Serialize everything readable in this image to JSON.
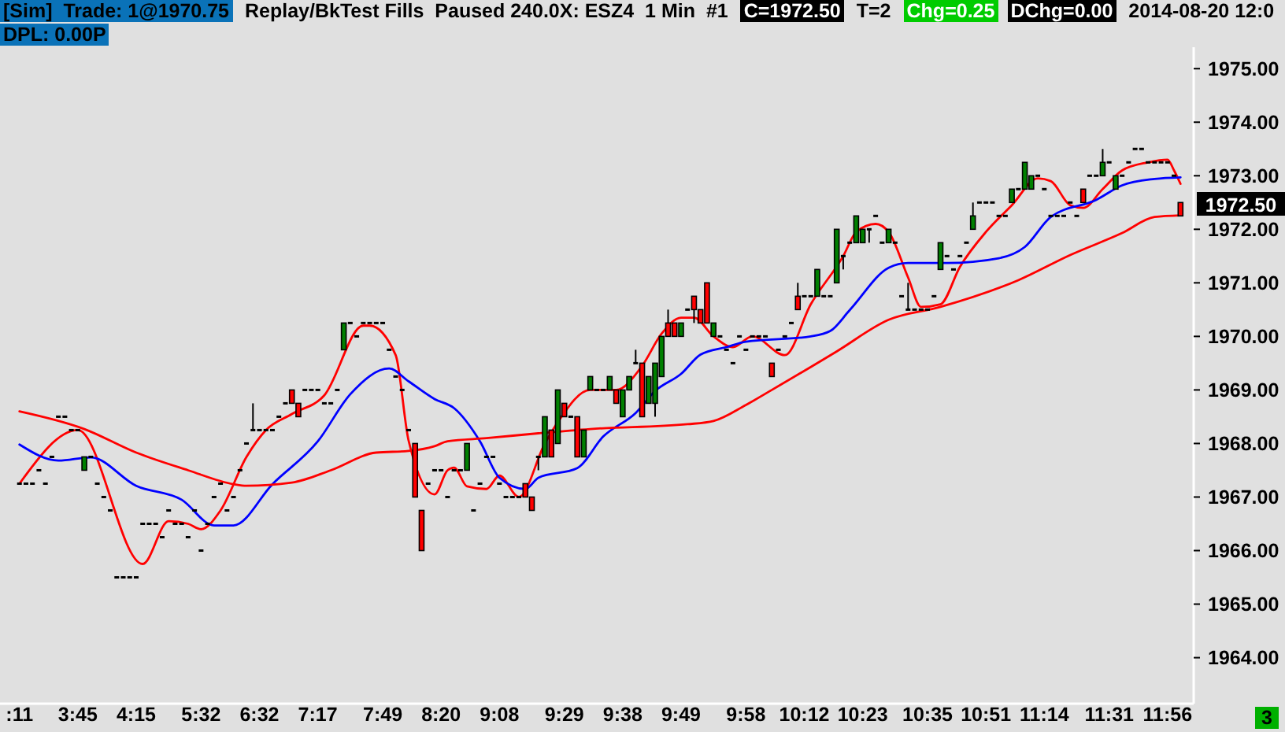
{
  "chart_data": {
    "type": "candlestick",
    "annotations": [
      "[Sim]  Trade: 1@1970.75",
      "Replay/BkTest Fills  Paused 240.0X: ESZ4  1 Min  #1",
      "C=1972.50",
      "T=2",
      "Chg=0.25",
      "DChg=0.00",
      "2014-08-20 12:0",
      "DPL: 0.00P",
      "3",
      "1972.50"
    ],
    "categories": [
      ":11",
      null,
      null,
      null,
      null,
      null,
      null,
      null,
      null,
      "3:45",
      null,
      null,
      null,
      null,
      null,
      null,
      null,
      null,
      "4:15",
      null,
      null,
      null,
      null,
      null,
      null,
      null,
      null,
      null,
      "5:32",
      null,
      null,
      null,
      null,
      null,
      null,
      null,
      null,
      "6:32",
      null,
      null,
      null,
      null,
      null,
      null,
      null,
      null,
      "7:17",
      null,
      null,
      null,
      null,
      null,
      null,
      null,
      null,
      null,
      "7:49",
      null,
      null,
      null,
      null,
      null,
      null,
      null,
      null,
      "8:20",
      null,
      null,
      null,
      null,
      null,
      null,
      null,
      null,
      "9:08",
      null,
      null,
      null,
      null,
      null,
      null,
      null,
      null,
      null,
      "9:29",
      null,
      null,
      null,
      null,
      null,
      null,
      null,
      null,
      "9:38",
      null,
      null,
      null,
      null,
      null,
      null,
      null,
      null,
      "9:49",
      null,
      null,
      null,
      null,
      null,
      null,
      null,
      null,
      null,
      "9:58",
      null,
      null,
      null,
      null,
      null,
      null,
      null,
      null,
      "10:12",
      null,
      null,
      null,
      null,
      null,
      null,
      null,
      null,
      "10:23",
      null,
      null,
      null,
      null,
      null,
      null,
      null,
      null,
      null,
      "10:35",
      null,
      null,
      null,
      null,
      null,
      null,
      null,
      null,
      "10:51",
      null,
      null,
      null,
      null,
      null,
      null,
      null,
      null,
      "11:14",
      null,
      null,
      null,
      null,
      null,
      null,
      null,
      null,
      null,
      "11:31",
      null,
      null,
      null,
      null,
      null,
      null,
      null,
      null,
      "11:56",
      null,
      null
    ],
    "ohlc": [
      [
        1967.25,
        1967.25,
        1967.25,
        1967.25
      ],
      [
        1967.25,
        1967.25,
        1967.25,
        1967.25
      ],
      [
        1967.25,
        1967.25,
        1967.25,
        1967.25
      ],
      [
        1967.5,
        1967.5,
        1967.5,
        1967.5
      ],
      [
        1967.25,
        1967.25,
        1967.25,
        1967.25
      ],
      [
        1967.75,
        1967.75,
        1967.75,
        1967.75
      ],
      [
        1968.5,
        1968.5,
        1968.5,
        1968.5
      ],
      [
        1968.5,
        1968.5,
        1968.5,
        1968.5
      ],
      [
        1968.25,
        1968.25,
        1968.25,
        1968.25
      ],
      [
        1968.25,
        1968.25,
        1968.25,
        1968.25
      ],
      [
        1967.5,
        1967.75,
        1967.5,
        1967.75
      ],
      [
        1967.75,
        1967.75,
        1967.75,
        1967.75
      ],
      [
        1967.25,
        1967.25,
        1967.25,
        1967.25
      ],
      [
        1967,
        1967,
        1967,
        1967
      ],
      [
        1966.75,
        1966.75,
        1966.75,
        1966.75
      ],
      [
        1965.5,
        1965.5,
        1965.5,
        1965.5
      ],
      [
        1965.5,
        1965.5,
        1965.5,
        1965.5
      ],
      [
        1965.5,
        1965.5,
        1965.5,
        1965.5
      ],
      [
        1965.5,
        1965.5,
        1965.5,
        1965.5
      ],
      [
        1966.5,
        1966.5,
        1966.5,
        1966.5
      ],
      [
        1966.5,
        1966.5,
        1966.5,
        1966.5
      ],
      [
        1966.5,
        1966.5,
        1966.5,
        1966.5
      ],
      [
        1966.25,
        1966.25,
        1966.25,
        1966.25
      ],
      [
        1966.75,
        1966.75,
        1966.75,
        1966.75
      ],
      [
        1966.5,
        1966.5,
        1966.5,
        1966.5
      ],
      [
        1966.5,
        1966.5,
        1966.5,
        1966.5
      ],
      [
        1966.25,
        1966.25,
        1966.25,
        1966.25
      ],
      [
        1966.75,
        1966.75,
        1966.75,
        1966.75
      ],
      [
        1966,
        1966,
        1966,
        1966
      ],
      [
        1966.5,
        1966.5,
        1966.5,
        1966.5
      ],
      [
        1967,
        1967,
        1967,
        1967
      ],
      [
        1967.25,
        1967.25,
        1967.25,
        1967.25
      ],
      [
        1966.75,
        1966.75,
        1966.75,
        1966.75
      ],
      [
        1967,
        1967,
        1967,
        1967
      ],
      [
        1967.5,
        1967.5,
        1967.5,
        1967.5
      ],
      [
        1968,
        1968,
        1968,
        1968
      ],
      [
        1968.25,
        1968.75,
        1968.25,
        1968.25
      ],
      [
        1968.25,
        1968.25,
        1968.25,
        1968.25
      ],
      [
        1968.25,
        1968.25,
        1968.25,
        1968.25
      ],
      [
        1968.25,
        1968.25,
        1968.25,
        1968.25
      ],
      [
        1968.5,
        1968.5,
        1968.5,
        1968.5
      ],
      [
        1968.75,
        1968.75,
        1968.75,
        1968.75
      ],
      [
        1969,
        1969,
        1968.75,
        1968.75
      ],
      [
        1968.75,
        1968.75,
        1968.5,
        1968.5
      ],
      [
        1969,
        1969,
        1969,
        1969
      ],
      [
        1969,
        1969,
        1969,
        1969
      ],
      [
        1969,
        1969,
        1969,
        1969
      ],
      [
        1968.75,
        1968.75,
        1968.75,
        1968.75
      ],
      [
        1968.75,
        1968.75,
        1968.75,
        1968.75
      ],
      [
        1969,
        1969,
        1969,
        1969
      ],
      [
        1969.75,
        1970.25,
        1969.75,
        1970.25
      ],
      [
        1970.25,
        1970.25,
        1970.25,
        1970.25
      ],
      [
        1970,
        1970,
        1970,
        1970
      ],
      [
        1970.25,
        1970.25,
        1970.25,
        1970.25
      ],
      [
        1970.25,
        1970.25,
        1970.25,
        1970.25
      ],
      [
        1970.25,
        1970.25,
        1970.25,
        1970.25
      ],
      [
        1970.25,
        1970.25,
        1970.25,
        1970.25
      ],
      [
        1969.75,
        1969.75,
        1969.75,
        1969.75
      ],
      [
        1969.25,
        1969.25,
        1969.25,
        1969.25
      ],
      [
        1969,
        1969,
        1969,
        1969
      ],
      [
        1968.25,
        1968.25,
        1968.25,
        1968.25
      ],
      [
        1968,
        1968,
        1967,
        1967
      ],
      [
        1966.75,
        1966.75,
        1966,
        1966
      ],
      [
        1967.25,
        1967.25,
        1967.25,
        1967.25
      ],
      [
        1967.5,
        1967.5,
        1967.5,
        1967.5
      ],
      [
        1967.5,
        1967.5,
        1967.5,
        1967.5
      ],
      [
        1967,
        1967,
        1967,
        1967
      ],
      [
        1967.5,
        1967.5,
        1967.5,
        1967.5
      ],
      [
        1967.5,
        1967.5,
        1967.5,
        1967.5
      ],
      [
        1967.5,
        1968,
        1967.5,
        1968
      ],
      [
        1966.75,
        1966.75,
        1966.75,
        1966.75
      ],
      [
        1967.25,
        1967.25,
        1967.25,
        1967.25
      ],
      [
        1967.75,
        1967.75,
        1967.75,
        1967.75
      ],
      [
        1967.75,
        1967.75,
        1967.75,
        1967.75
      ],
      [
        1967.25,
        1967.25,
        1967.25,
        1967.25
      ],
      [
        1967,
        1967,
        1967,
        1967
      ],
      [
        1967,
        1967,
        1967,
        1967
      ],
      [
        1967,
        1967,
        1967,
        1967
      ],
      [
        1967.25,
        1967.25,
        1967,
        1967
      ],
      [
        1967,
        1967,
        1966.75,
        1966.75
      ],
      [
        1967.75,
        1967.75,
        1967.5,
        1967.75
      ],
      [
        1967.75,
        1968.5,
        1967.75,
        1968.5
      ],
      [
        1968.25,
        1968.25,
        1967.75,
        1967.75
      ],
      [
        1968,
        1969,
        1968,
        1969
      ],
      [
        1968.75,
        1968.75,
        1968.5,
        1968.5
      ],
      [
        1968.5,
        1968.5,
        1968.5,
        1968.5
      ],
      [
        1968.5,
        1968.5,
        1967.75,
        1967.75
      ],
      [
        1967.75,
        1968.25,
        1967.75,
        1968.25
      ],
      [
        1969,
        1969.25,
        1969,
        1969.25
      ],
      [
        1969,
        1969,
        1969,
        1969
      ],
      [
        1969,
        1969,
        1969,
        1969
      ],
      [
        1969,
        1969.25,
        1969,
        1969.25
      ],
      [
        1969,
        1969,
        1968.75,
        1968.75
      ],
      [
        1968.5,
        1969,
        1968.5,
        1969
      ],
      [
        1969,
        1969.25,
        1969,
        1969.25
      ],
      [
        1969.5,
        1969.75,
        1969.5,
        1969.5
      ],
      [
        1969.5,
        1969.5,
        1968.5,
        1968.5
      ],
      [
        1968.75,
        1969.25,
        1968.75,
        1969.25
      ],
      [
        1968.75,
        1969.5,
        1968.5,
        1969.5
      ],
      [
        1969.25,
        1970,
        1969.25,
        1970
      ],
      [
        1970.25,
        1970.5,
        1970,
        1970
      ],
      [
        1970.25,
        1970.25,
        1970,
        1970
      ],
      [
        1970,
        1970.25,
        1970,
        1970.25
      ],
      [
        1970.5,
        1970.5,
        1970.5,
        1970.5
      ],
      [
        1970.75,
        1970.75,
        1970.25,
        1970.5
      ],
      [
        1970.5,
        1970.5,
        1970.25,
        1970.25
      ],
      [
        1971,
        1971,
        1970.25,
        1970.25
      ],
      [
        1970,
        1970.25,
        1970,
        1970.25
      ],
      [
        1970,
        1970,
        1970,
        1970
      ],
      [
        1969.75,
        1969.75,
        1969.75,
        1969.75
      ],
      [
        1969.5,
        1969.5,
        1969.5,
        1969.5
      ],
      [
        1970,
        1970,
        1970,
        1970
      ],
      [
        1969.75,
        1969.75,
        1969.75,
        1969.75
      ],
      [
        1970,
        1970,
        1970,
        1970
      ],
      [
        1970,
        1970,
        1970,
        1970
      ],
      [
        1970,
        1970,
        1970,
        1970
      ],
      [
        1969.5,
        1969.5,
        1969.25,
        1969.25
      ],
      [
        1969.75,
        1969.75,
        1969.75,
        1969.75
      ],
      [
        1970,
        1970,
        1970,
        1970
      ],
      [
        1970.25,
        1970.25,
        1970.25,
        1970.25
      ],
      [
        1970.75,
        1971,
        1970.5,
        1970.5
      ],
      [
        1970.75,
        1970.75,
        1970.75,
        1970.75
      ],
      [
        1970.75,
        1970.75,
        1970.75,
        1970.75
      ],
      [
        1970.75,
        1971.25,
        1970.75,
        1971.25
      ],
      [
        1970.75,
        1970.75,
        1970.75,
        1970.75
      ],
      [
        1970.75,
        1970.75,
        1970.75,
        1970.75
      ],
      [
        1971,
        1972,
        1971,
        1972
      ],
      [
        1971.5,
        1971.5,
        1971.25,
        1971.5
      ],
      [
        1971.75,
        1971.75,
        1971.75,
        1971.75
      ],
      [
        1971.75,
        1972.25,
        1971.75,
        1972.25
      ],
      [
        1971.75,
        1972,
        1971.75,
        1972
      ],
      [
        1972,
        1972,
        1971.75,
        1972
      ],
      [
        1972.25,
        1972.25,
        1972.25,
        1972.25
      ],
      [
        1971.75,
        1971.75,
        1971.75,
        1971.75
      ],
      [
        1971.75,
        1972,
        1971.75,
        1972
      ],
      [
        1971.75,
        1971.75,
        1971.75,
        1971.75
      ],
      [
        1970.75,
        1970.75,
        1970.75,
        1970.75
      ],
      [
        1970.5,
        1971,
        1970.5,
        1970.5
      ],
      [
        1970.5,
        1970.5,
        1970.5,
        1970.5
      ],
      [
        1970.5,
        1970.5,
        1970.5,
        1970.5
      ],
      [
        1970.5,
        1970.5,
        1970.5,
        1970.5
      ],
      [
        1970.75,
        1970.75,
        1970.75,
        1970.75
      ],
      [
        1971.25,
        1971.75,
        1971.25,
        1971.75
      ],
      [
        1971.5,
        1971.5,
        1971.5,
        1971.5
      ],
      [
        1971.25,
        1971.25,
        1971.25,
        1971.25
      ],
      [
        1971.5,
        1971.5,
        1971.5,
        1971.5
      ],
      [
        1971.75,
        1971.75,
        1971.75,
        1971.75
      ],
      [
        1972,
        1972.5,
        1972,
        1972.25
      ],
      [
        1972.5,
        1972.5,
        1972.5,
        1972.5
      ],
      [
        1972.5,
        1972.5,
        1972.5,
        1972.5
      ],
      [
        1972.5,
        1972.5,
        1972.5,
        1972.5
      ],
      [
        1972.25,
        1972.25,
        1972.25,
        1972.25
      ],
      [
        1972.25,
        1972.25,
        1972.25,
        1972.25
      ],
      [
        1972.5,
        1972.75,
        1972.5,
        1972.75
      ],
      [
        1972.75,
        1972.75,
        1972.75,
        1972.75
      ],
      [
        1972.75,
        1973.25,
        1972.75,
        1973.25
      ],
      [
        1972.75,
        1973,
        1972.75,
        1973
      ],
      [
        1973,
        1973,
        1973,
        1973
      ],
      [
        1972.75,
        1972.75,
        1972.75,
        1972.75
      ],
      [
        1972.25,
        1972.25,
        1972.25,
        1972.25
      ],
      [
        1972.25,
        1972.25,
        1972.25,
        1972.25
      ],
      [
        1972.25,
        1972.25,
        1972.25,
        1972.25
      ],
      [
        1972.5,
        1972.5,
        1972.5,
        1972.5
      ],
      [
        1972.25,
        1972.25,
        1972.25,
        1972.25
      ],
      [
        1972.75,
        1972.75,
        1972.5,
        1972.5
      ],
      [
        1973,
        1973,
        1973,
        1973
      ],
      [
        1973,
        1973,
        1973,
        1973
      ],
      [
        1973,
        1973.5,
        1973,
        1973.25
      ],
      [
        1973.25,
        1973.25,
        1973.25,
        1973.25
      ],
      [
        1972.75,
        1973,
        1972.75,
        1973
      ],
      [
        1973,
        1973,
        1973,
        1973
      ],
      [
        1973.25,
        1973.25,
        1973.25,
        1973.25
      ],
      [
        1973.5,
        1973.5,
        1973.5,
        1973.5
      ],
      [
        1973.5,
        1973.5,
        1973.5,
        1973.5
      ],
      [
        1973.25,
        1973.25,
        1973.25,
        1973.25
      ],
      [
        1973.25,
        1973.25,
        1973.25,
        1973.25
      ],
      [
        1973.25,
        1973.25,
        1973.25,
        1973.25
      ],
      [
        1973.25,
        1973.25,
        1973.25,
        1973.25
      ],
      [
        1973,
        1973,
        1973,
        1973
      ],
      [
        1972.5,
        1972.5,
        1972.25,
        1972.25
      ]
    ],
    "series": [
      {
        "type": "line",
        "color": "#ff0000",
        "values": [
          1967.25,
          null,
          null,
          null,
          null,
          null,
          null,
          null,
          null,
          1968.25,
          null,
          null,
          null,
          null,
          null,
          null,
          null,
          null,
          null,
          1965.75,
          null,
          null,
          null,
          1966.55,
          null,
          null,
          1966.5,
          null,
          1966.4,
          null,
          null,
          1966.75,
          null,
          null,
          null,
          1967.75,
          null,
          null,
          1968.25,
          null,
          null,
          null,
          1968.55,
          null,
          null,
          null,
          null,
          1968.9,
          null,
          null,
          null,
          null,
          null,
          1970.2,
          1970.2,
          null,
          null,
          null,
          1969.65,
          null,
          1968.05,
          null,
          null,
          null,
          1967.05,
          null,
          1967.5,
          1967.55,
          null,
          1967.2,
          null,
          null,
          1967.15,
          null,
          1967.4,
          null,
          null,
          1967.0,
          null,
          null,
          null,
          1968.0,
          null,
          1968.4,
          null,
          null,
          null,
          null,
          1969.0,
          null,
          null,
          null,
          1969.0,
          null,
          null,
          null,
          1969.45,
          null,
          null,
          1970.05,
          null,
          null,
          1970.35,
          null,
          1970.35,
          null,
          null,
          1970.0,
          null,
          null,
          1969.8,
          null,
          null,
          1970.0,
          null,
          null,
          null,
          null,
          1969.65,
          null,
          null,
          null,
          1970.6,
          null,
          null,
          null,
          null,
          1971.5,
          null,
          1971.95,
          null,
          null,
          1972.1,
          null,
          1971.95,
          null,
          null,
          1971.1,
          null,
          1970.55,
          null,
          null,
          1970.6,
          null,
          null,
          1971.3,
          null,
          null,
          null,
          1971.95,
          null,
          null,
          null,
          1972.45,
          null,
          null,
          null,
          1972.95,
          null,
          1972.9,
          null,
          null,
          1972.45,
          null,
          1972.4,
          null,
          null,
          1972.75,
          null,
          null,
          1973.1,
          null,
          null,
          null,
          1973.25,
          null,
          null,
          1973.3,
          1973.1,
          1972.85
        ]
      },
      {
        "type": "line",
        "color": "#0000ff",
        "values": [
          1967.98,
          null,
          null,
          null,
          null,
          null,
          1967.68,
          null,
          null,
          null,
          null,
          1967.74,
          null,
          null,
          null,
          null,
          null,
          null,
          1967.21,
          null,
          null,
          null,
          null,
          null,
          null,
          1966.95,
          null,
          null,
          null,
          null,
          1966.47,
          null,
          null,
          1966.47,
          null,
          null,
          null,
          null,
          null,
          1967.24,
          null,
          null,
          null,
          null,
          null,
          null,
          1968.04,
          null,
          null,
          null,
          null,
          1968.92,
          null,
          null,
          null,
          null,
          null,
          1969.4,
          null,
          null,
          1969.16,
          null,
          null,
          null,
          1968.83,
          null,
          null,
          1968.66,
          null,
          null,
          null,
          1968.04,
          null,
          null,
          1967.36,
          null,
          null,
          null,
          1967.15,
          null,
          1967.36,
          null,
          null,
          null,
          null,
          null,
          1967.54,
          null,
          null,
          null,
          1968.13,
          null,
          null,
          null,
          null,
          1968.57,
          null,
          null,
          1968.98,
          null,
          null,
          null,
          1969.3,
          null,
          null,
          1969.66,
          null,
          null,
          null,
          1969.8,
          null,
          null,
          1969.9,
          null,
          null,
          null,
          null,
          null,
          null,
          null,
          null,
          null,
          1970.0,
          null,
          null,
          1970.1,
          null,
          null,
          1970.49,
          null,
          null,
          null,
          null,
          null,
          1971.28,
          null,
          null,
          1971.37,
          null,
          null,
          null,
          null,
          null,
          1971.37,
          null,
          null,
          null,
          null,
          null,
          null,
          null,
          1971.46,
          null,
          null,
          null,
          1971.67,
          null,
          null,
          null,
          1972.23,
          null,
          null,
          null,
          null,
          null,
          null,
          1972.55,
          null,
          null,
          null,
          1972.82,
          null,
          null,
          null,
          null,
          1972.94,
          null,
          null,
          null,
          1972.97
        ]
      },
      {
        "type": "line",
        "color": "#ff0000",
        "values": [
          1968.6,
          null,
          null,
          null,
          null,
          null,
          null,
          null,
          null,
          null,
          1968.27,
          null,
          null,
          null,
          null,
          null,
          null,
          null,
          1967.83,
          null,
          null,
          null,
          null,
          null,
          null,
          null,
          1967.5,
          null,
          null,
          null,
          null,
          null,
          null,
          1967.24,
          null,
          1967.21,
          null,
          null,
          null,
          null,
          null,
          null,
          1967.27,
          null,
          null,
          null,
          null,
          null,
          1967.5,
          null,
          null,
          null,
          null,
          null,
          null,
          1967.83,
          null,
          null,
          null,
          null,
          1967.86,
          null,
          null,
          null,
          1967.95,
          null,
          1968.04,
          null,
          null,
          null,
          null,
          null,
          1968.1,
          null,
          null,
          null,
          null,
          null,
          null,
          null,
          1968.19,
          null,
          null,
          null,
          null,
          null,
          null,
          null,
          1968.27,
          null,
          null,
          null,
          null,
          null,
          null,
          null,
          null,
          null,
          null,
          null,
          null,
          null,
          null,
          1968.36,
          null,
          null,
          null,
          1968.42,
          null,
          null,
          null,
          null,
          1968.72,
          null,
          null,
          null,
          1969.0,
          null,
          null,
          null,
          null,
          null,
          null,
          null,
          null,
          null,
          1969.72,
          null,
          null,
          null,
          null,
          null,
          null,
          null,
          1970.31,
          null,
          null,
          null,
          null,
          null,
          null,
          null,
          1970.55,
          null,
          null,
          null,
          null,
          null,
          null,
          null,
          null,
          null,
          null,
          null,
          1971.05,
          null,
          null,
          null,
          null,
          null,
          null,
          null,
          1971.52,
          null,
          null,
          null,
          null,
          null,
          null,
          null,
          1971.93,
          null,
          null,
          null,
          null,
          1972.23,
          null,
          null,
          null,
          1972.26
        ]
      }
    ],
    "ylim": [
      1963.2,
      1975.4
    ],
    "yticks": [
      {
        "value": 1964,
        "label": "1964.00"
      },
      {
        "value": 1965,
        "label": "1965.00"
      },
      {
        "value": 1966,
        "label": "1966.00"
      },
      {
        "value": 1967,
        "label": "1967.00"
      },
      {
        "value": 1968,
        "label": "1968.00"
      },
      {
        "value": 1969,
        "label": "1969.00"
      },
      {
        "value": 1970,
        "label": "1970.00"
      },
      {
        "value": 1971,
        "label": "1971.00"
      },
      {
        "value": 1972,
        "label": "1972.00"
      },
      {
        "value": 1973,
        "label": "1973.00"
      },
      {
        "value": 1974,
        "label": "1974.00"
      },
      {
        "value": 1975,
        "label": "1975.00"
      }
    ]
  }
}
